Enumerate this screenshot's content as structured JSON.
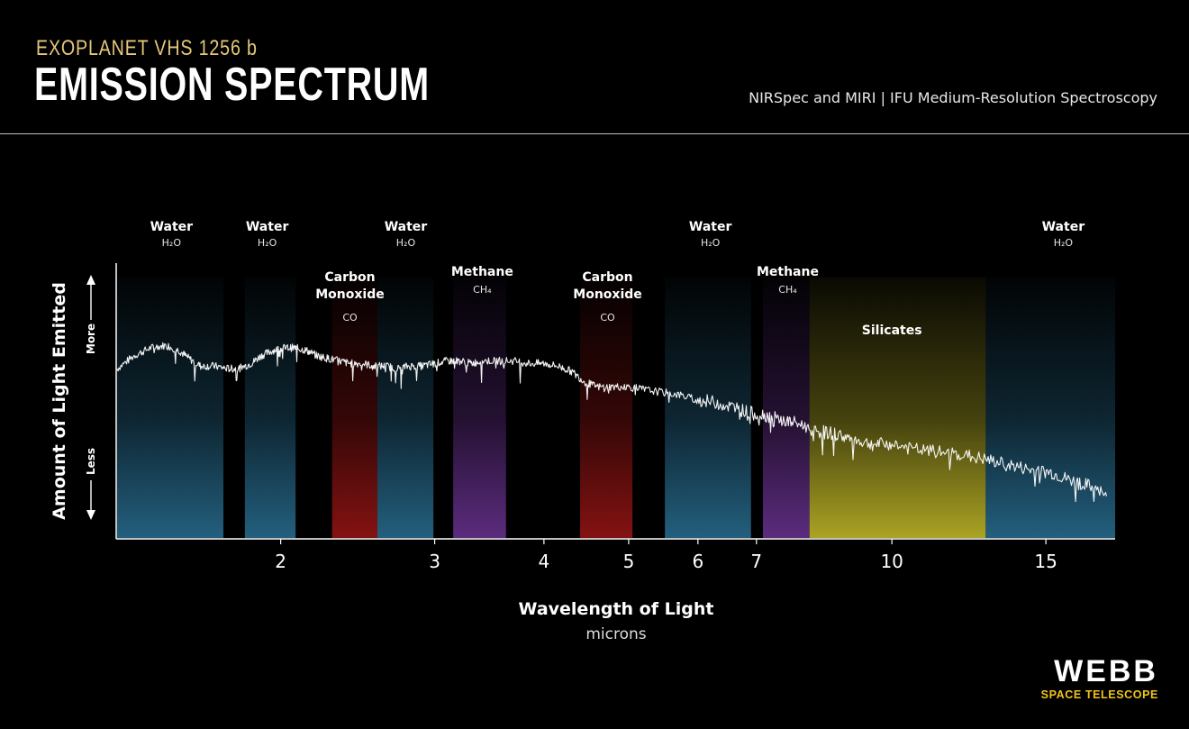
{
  "header": {
    "kicker": "EXOPLANET VHS 1256 b",
    "title": "EMISSION SPECTRUM",
    "subtitle": "NIRSpec and MIRI | IFU Medium-Resolution Spectroscopy"
  },
  "logo": {
    "word": "WEBB",
    "sub": "SPACE TELESCOPE"
  },
  "colors": {
    "water": "#2f7fa8",
    "carbon_monoxide": "#b01818",
    "methane": "#7a3aa8",
    "silicates": "#c9c02a",
    "spectrum": "#ffffff",
    "kicker": "#e6c77a",
    "logo_accent": "#f0c419"
  },
  "chart_data": {
    "type": "line",
    "xscale": "log",
    "xlim": [
      1.3,
      18
    ],
    "xticks": [
      2,
      3,
      4,
      5,
      6,
      7,
      10,
      15
    ],
    "xlabel": "Wavelength of Light",
    "xunit": "microns",
    "ylabel": "Amount of Light Emitted",
    "y_more": "More",
    "y_less": "Less",
    "ylim": [
      0,
      1
    ],
    "bands": [
      {
        "name": "Water",
        "formula": "H₂O",
        "kind": "water",
        "range": [
          1.3,
          1.72
        ]
      },
      {
        "name": "Water",
        "formula": "H₂O",
        "kind": "water",
        "range": [
          1.82,
          2.08
        ]
      },
      {
        "name": "Carbon\nMonoxide",
        "formula": "CO",
        "kind": "carbon_monoxide",
        "range": [
          2.29,
          2.58
        ]
      },
      {
        "name": "Water",
        "formula": "H₂O",
        "kind": "water",
        "range": [
          2.58,
          2.99
        ]
      },
      {
        "name": "Methane",
        "formula": "CH₄",
        "kind": "methane",
        "range": [
          3.15,
          3.62
        ]
      },
      {
        "name": "Carbon\nMonoxide",
        "formula": "CO",
        "kind": "carbon_monoxide",
        "range": [
          4.4,
          5.05
        ]
      },
      {
        "name": "Water",
        "formula": "H₂O",
        "kind": "water",
        "range": [
          5.5,
          6.9
        ]
      },
      {
        "name": "Methane",
        "formula": "CH₄",
        "kind": "methane",
        "range": [
          7.12,
          8.05
        ]
      },
      {
        "name": "Silicates",
        "formula": "",
        "kind": "silicates",
        "range": [
          8.05,
          12.8
        ]
      },
      {
        "name": "Water",
        "formula": "H₂O",
        "kind": "water",
        "range": [
          12.8,
          18
        ]
      }
    ],
    "labels": [
      {
        "name": "Water",
        "formula": "H₂O",
        "x": 1.5,
        "row": "top"
      },
      {
        "name": "Water",
        "formula": "H₂O",
        "x": 1.93,
        "row": "top"
      },
      {
        "name": "Carbon Monoxide",
        "formula": "CO",
        "x": 2.4,
        "row": "mid"
      },
      {
        "name": "Water",
        "formula": "H₂O",
        "x": 2.78,
        "row": "top"
      },
      {
        "name": "Methane",
        "formula": "CH₄",
        "x": 3.4,
        "row": "mid"
      },
      {
        "name": "Carbon Monoxide",
        "formula": "CO",
        "x": 4.73,
        "row": "mid"
      },
      {
        "name": "Water",
        "formula": "H₂O",
        "x": 6.2,
        "row": "top"
      },
      {
        "name": "Methane",
        "formula": "CH₄",
        "x": 7.6,
        "row": "mid"
      },
      {
        "name": "Silicates",
        "formula": "",
        "x": 10,
        "row": "low"
      },
      {
        "name": "Water",
        "formula": "H₂O",
        "x": 15.7,
        "row": "top"
      }
    ],
    "series": [
      {
        "x": [
          1.3,
          1.36,
          1.42,
          1.48,
          1.53,
          1.57,
          1.62,
          1.68,
          1.74,
          1.79,
          1.85,
          1.9,
          1.96,
          2.02,
          2.08,
          2.14,
          2.2,
          2.26,
          2.33,
          2.4,
          2.48,
          2.56,
          2.64,
          2.72,
          2.8,
          2.9,
          3.0,
          3.1,
          3.2,
          3.3,
          3.4,
          3.55,
          3.7,
          3.85,
          4.0,
          4.15,
          4.3,
          4.45,
          4.6,
          4.8,
          5.0,
          5.2,
          5.45,
          5.7,
          6.0,
          6.3,
          6.6,
          6.9,
          7.2,
          7.5,
          7.8,
          8.2,
          8.6,
          9.0,
          9.5,
          10.0,
          10.6,
          11.3,
          12.0,
          12.8,
          13.6,
          14.4,
          15.2,
          16.0,
          16.8,
          17.6
        ],
        "y": [
          0.65,
          0.7,
          0.73,
          0.74,
          0.72,
          0.69,
          0.66,
          0.66,
          0.65,
          0.65,
          0.67,
          0.7,
          0.72,
          0.73,
          0.73,
          0.72,
          0.7,
          0.69,
          0.68,
          0.67,
          0.67,
          0.66,
          0.66,
          0.65,
          0.66,
          0.66,
          0.67,
          0.68,
          0.68,
          0.67,
          0.68,
          0.68,
          0.68,
          0.67,
          0.67,
          0.66,
          0.64,
          0.6,
          0.58,
          0.58,
          0.58,
          0.57,
          0.56,
          0.55,
          0.53,
          0.52,
          0.5,
          0.48,
          0.47,
          0.45,
          0.44,
          0.41,
          0.4,
          0.38,
          0.36,
          0.36,
          0.34,
          0.33,
          0.32,
          0.3,
          0.28,
          0.26,
          0.25,
          0.22,
          0.2,
          0.16
        ]
      }
    ]
  }
}
